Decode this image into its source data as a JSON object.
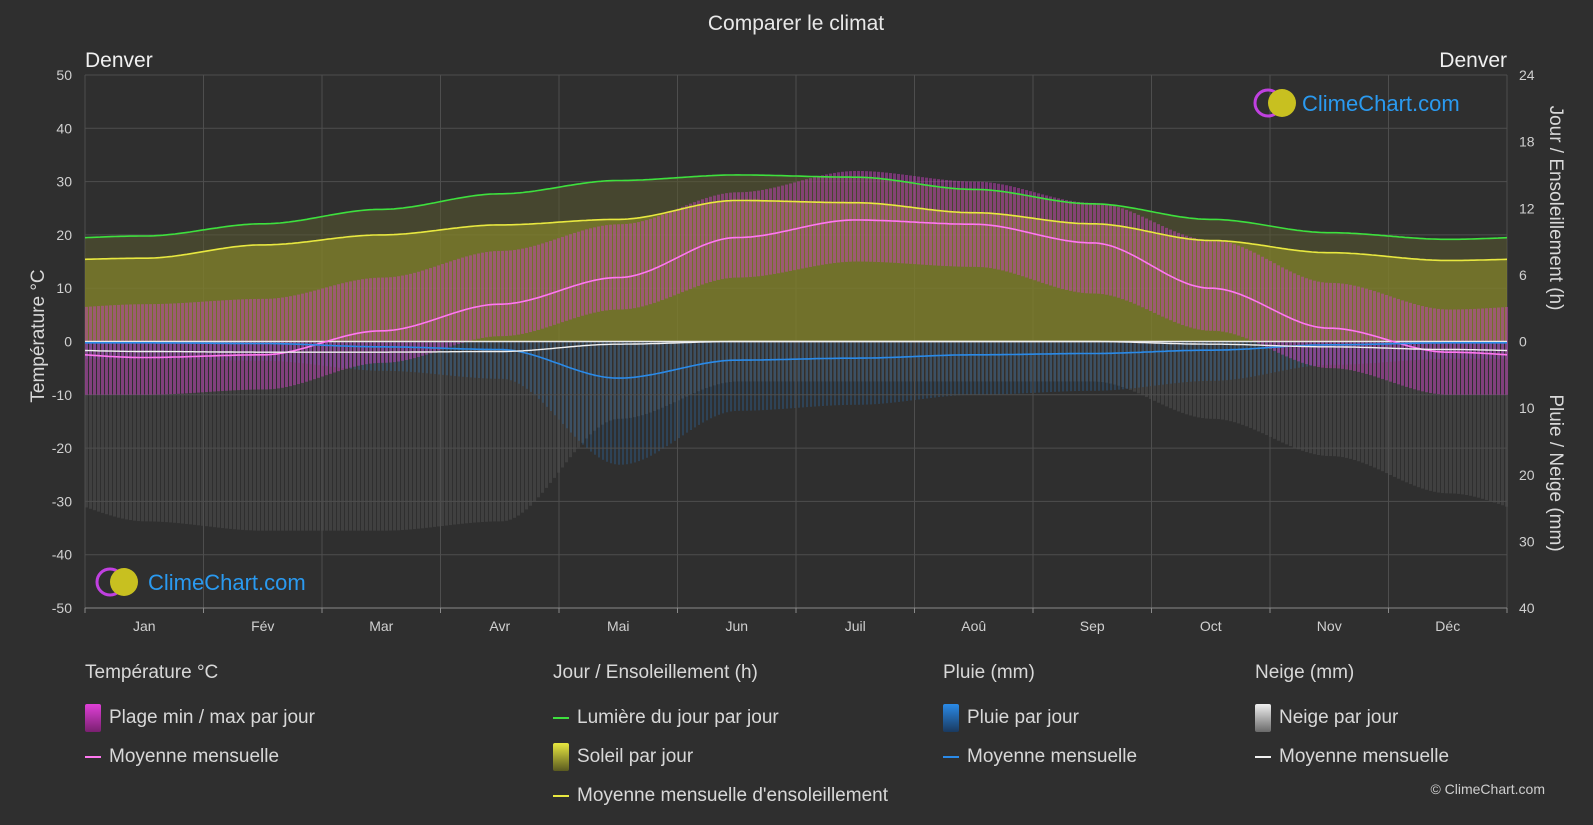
{
  "title": "Comparer le climat",
  "city_left": "Denver",
  "city_right": "Denver",
  "brand": "ClimeChart.com",
  "copyright": "© ClimeChart.com",
  "colors": {
    "background": "#2f2f2f",
    "daylight": "#3ee03e",
    "sunshine_mean": "#e8e840",
    "sunshine_fill": "#8e8e2a",
    "temp_range": "#d040c8",
    "temp_mean": "#ff78f0",
    "rain": "#2a7fd0",
    "rain_mean": "#2a8ae8",
    "snow": "#bdbdbd",
    "snow_mean": "#f0f0f0"
  },
  "chart_data": {
    "type": "line",
    "title": "Comparer le climat",
    "categories": [
      "Jan",
      "Fév",
      "Mar",
      "Avr",
      "Mai",
      "Jun",
      "Juil",
      "Aoû",
      "Sep",
      "Oct",
      "Nov",
      "Déc"
    ],
    "y_left": {
      "label": "Température °C",
      "range": [
        -50,
        50
      ],
      "ticks": [
        50,
        40,
        30,
        20,
        10,
        0,
        -10,
        -20,
        -30,
        -40,
        -50
      ]
    },
    "y_right_top": {
      "label": "Jour / Ensoleillement (h)",
      "range": [
        0,
        24
      ],
      "ticks": [
        24,
        18,
        12,
        6,
        0
      ]
    },
    "y_right_bottom": {
      "label": "Pluie / Neige (mm)",
      "range": [
        0,
        40
      ],
      "ticks": [
        10,
        20,
        30,
        40
      ]
    },
    "grid": true,
    "series": [
      {
        "name": "Lumière du jour par jour",
        "axis": "hours",
        "values": [
          9.5,
          10.6,
          11.9,
          13.3,
          14.5,
          15.0,
          14.8,
          13.7,
          12.4,
          11.0,
          9.8,
          9.2
        ]
      },
      {
        "name": "Moyenne mensuelle d'ensoleillement",
        "axis": "hours",
        "values": [
          7.5,
          8.7,
          9.6,
          10.5,
          11.0,
          12.7,
          12.5,
          11.6,
          10.6,
          9.1,
          8.0,
          7.3
        ]
      },
      {
        "name": "Soleil par jour",
        "axis": "hours",
        "values": [
          7.5,
          8.7,
          9.6,
          10.5,
          11.0,
          12.7,
          12.5,
          11.6,
          10.6,
          9.1,
          8.0,
          7.3
        ]
      },
      {
        "name": "Moyenne mensuelle",
        "group": "Température °C",
        "axis": "temp",
        "values": [
          -3,
          -2.5,
          2,
          7,
          12,
          19.5,
          22.8,
          22,
          18.5,
          10,
          2.5,
          -2
        ]
      },
      {
        "name": "Plage min / max par jour",
        "axis": "temp",
        "min": [
          -10,
          -9,
          -4,
          1,
          6,
          12,
          15,
          14,
          9,
          2,
          -5,
          -10
        ],
        "max": [
          7,
          8,
          12,
          17,
          22,
          28,
          32,
          30,
          26,
          19,
          11,
          6
        ]
      },
      {
        "name": "Moyenne mensuelle",
        "group": "Pluie (mm)",
        "axis": "precip",
        "values": [
          0.2,
          0.3,
          0.8,
          1.2,
          5.5,
          2.8,
          2.5,
          2.0,
          1.8,
          1.3,
          0.5,
          0.2
        ]
      },
      {
        "name": "Moyenne mensuelle",
        "group": "Neige (mm)",
        "axis": "precip",
        "values": [
          1.5,
          1.6,
          1.6,
          1.5,
          0.4,
          0.0,
          0.0,
          0.0,
          0.0,
          0.4,
          0.8,
          1.2
        ]
      }
    ]
  },
  "legend": {
    "temperature": {
      "header": "Température °C",
      "items": [
        "Plage min / max par jour",
        "Moyenne mensuelle"
      ]
    },
    "sun": {
      "header": "Jour / Ensoleillement (h)",
      "items": [
        "Lumière du jour par jour",
        "Soleil par jour",
        "Moyenne mensuelle d'ensoleillement"
      ]
    },
    "rain": {
      "header": "Pluie (mm)",
      "items": [
        "Pluie par jour",
        "Moyenne mensuelle"
      ]
    },
    "snow": {
      "header": "Neige (mm)",
      "items": [
        "Neige par jour",
        "Moyenne mensuelle"
      ]
    }
  }
}
